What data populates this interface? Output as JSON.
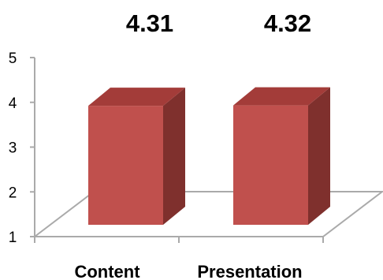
{
  "chart_data": {
    "type": "bar",
    "style": "3d-column",
    "title": "",
    "xlabel": "",
    "ylabel": "",
    "categories": [
      "Content",
      "Presentation"
    ],
    "values": [
      4.31,
      4.32
    ],
    "data_labels": [
      "4.31",
      "4.32"
    ],
    "ylim": [
      1,
      5
    ],
    "yticks": [
      "1",
      "2",
      "3",
      "4",
      "5"
    ],
    "grid": false,
    "legend": "none",
    "colors": {
      "bar_front": "#c0504d",
      "bar_side": "#7f302d",
      "bar_top": "#a33c39",
      "axis": "#aaaaaa",
      "floor": "#ffffff"
    }
  }
}
